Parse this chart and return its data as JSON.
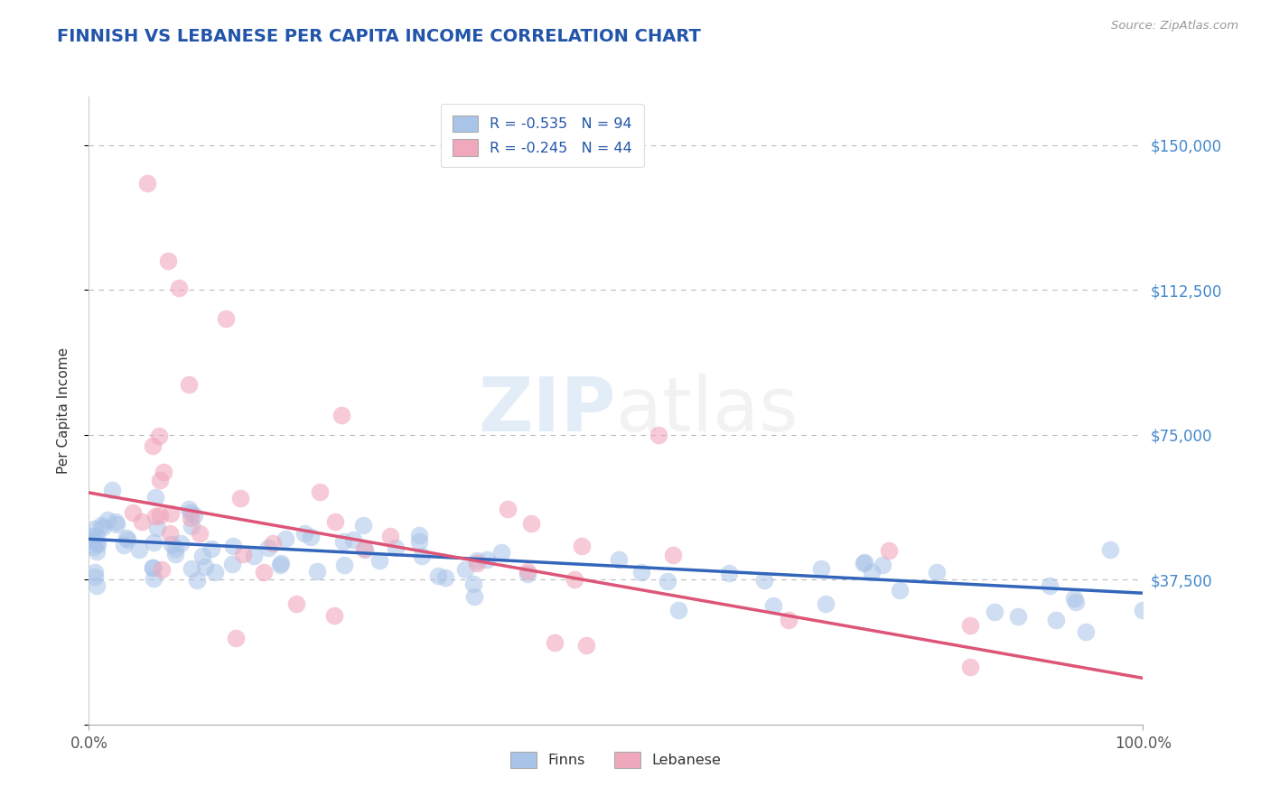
{
  "title": "FINNISH VS LEBANESE PER CAPITA INCOME CORRELATION CHART",
  "source_text": "Source: ZipAtlas.com",
  "ylabel": "Per Capita Income",
  "xlim": [
    0.0,
    1.0
  ],
  "ylim": [
    0,
    162500
  ],
  "yticks": [
    0,
    37500,
    75000,
    112500,
    150000
  ],
  "ytick_labels": [
    "",
    "$37,500",
    "$75,000",
    "$112,500",
    "$150,000"
  ],
  "xtick_labels": [
    "0.0%",
    "100.0%"
  ],
  "legend_labels": [
    "R = -0.535   N = 94",
    "R = -0.245   N = 44"
  ],
  "legend_bottom_labels": [
    "Finns",
    "Lebanese"
  ],
  "finn_color": "#a8c4e8",
  "lebanese_color": "#f0a8bc",
  "finn_line_color": "#3366bb",
  "lebanese_line_color": "#dd5577",
  "background_color": "#ffffff",
  "grid_color": "#aaaaaa",
  "title_color": "#2255aa",
  "ylabel_color": "#333333",
  "right_tick_color": "#4488cc",
  "watermark_color_zip": "#4488cc",
  "watermark_color_atlas": "#aaaaaa",
  "finn_intercept": 48000,
  "finn_slope": -14000,
  "lebanese_intercept": 60000,
  "lebanese_slope": -48000
}
